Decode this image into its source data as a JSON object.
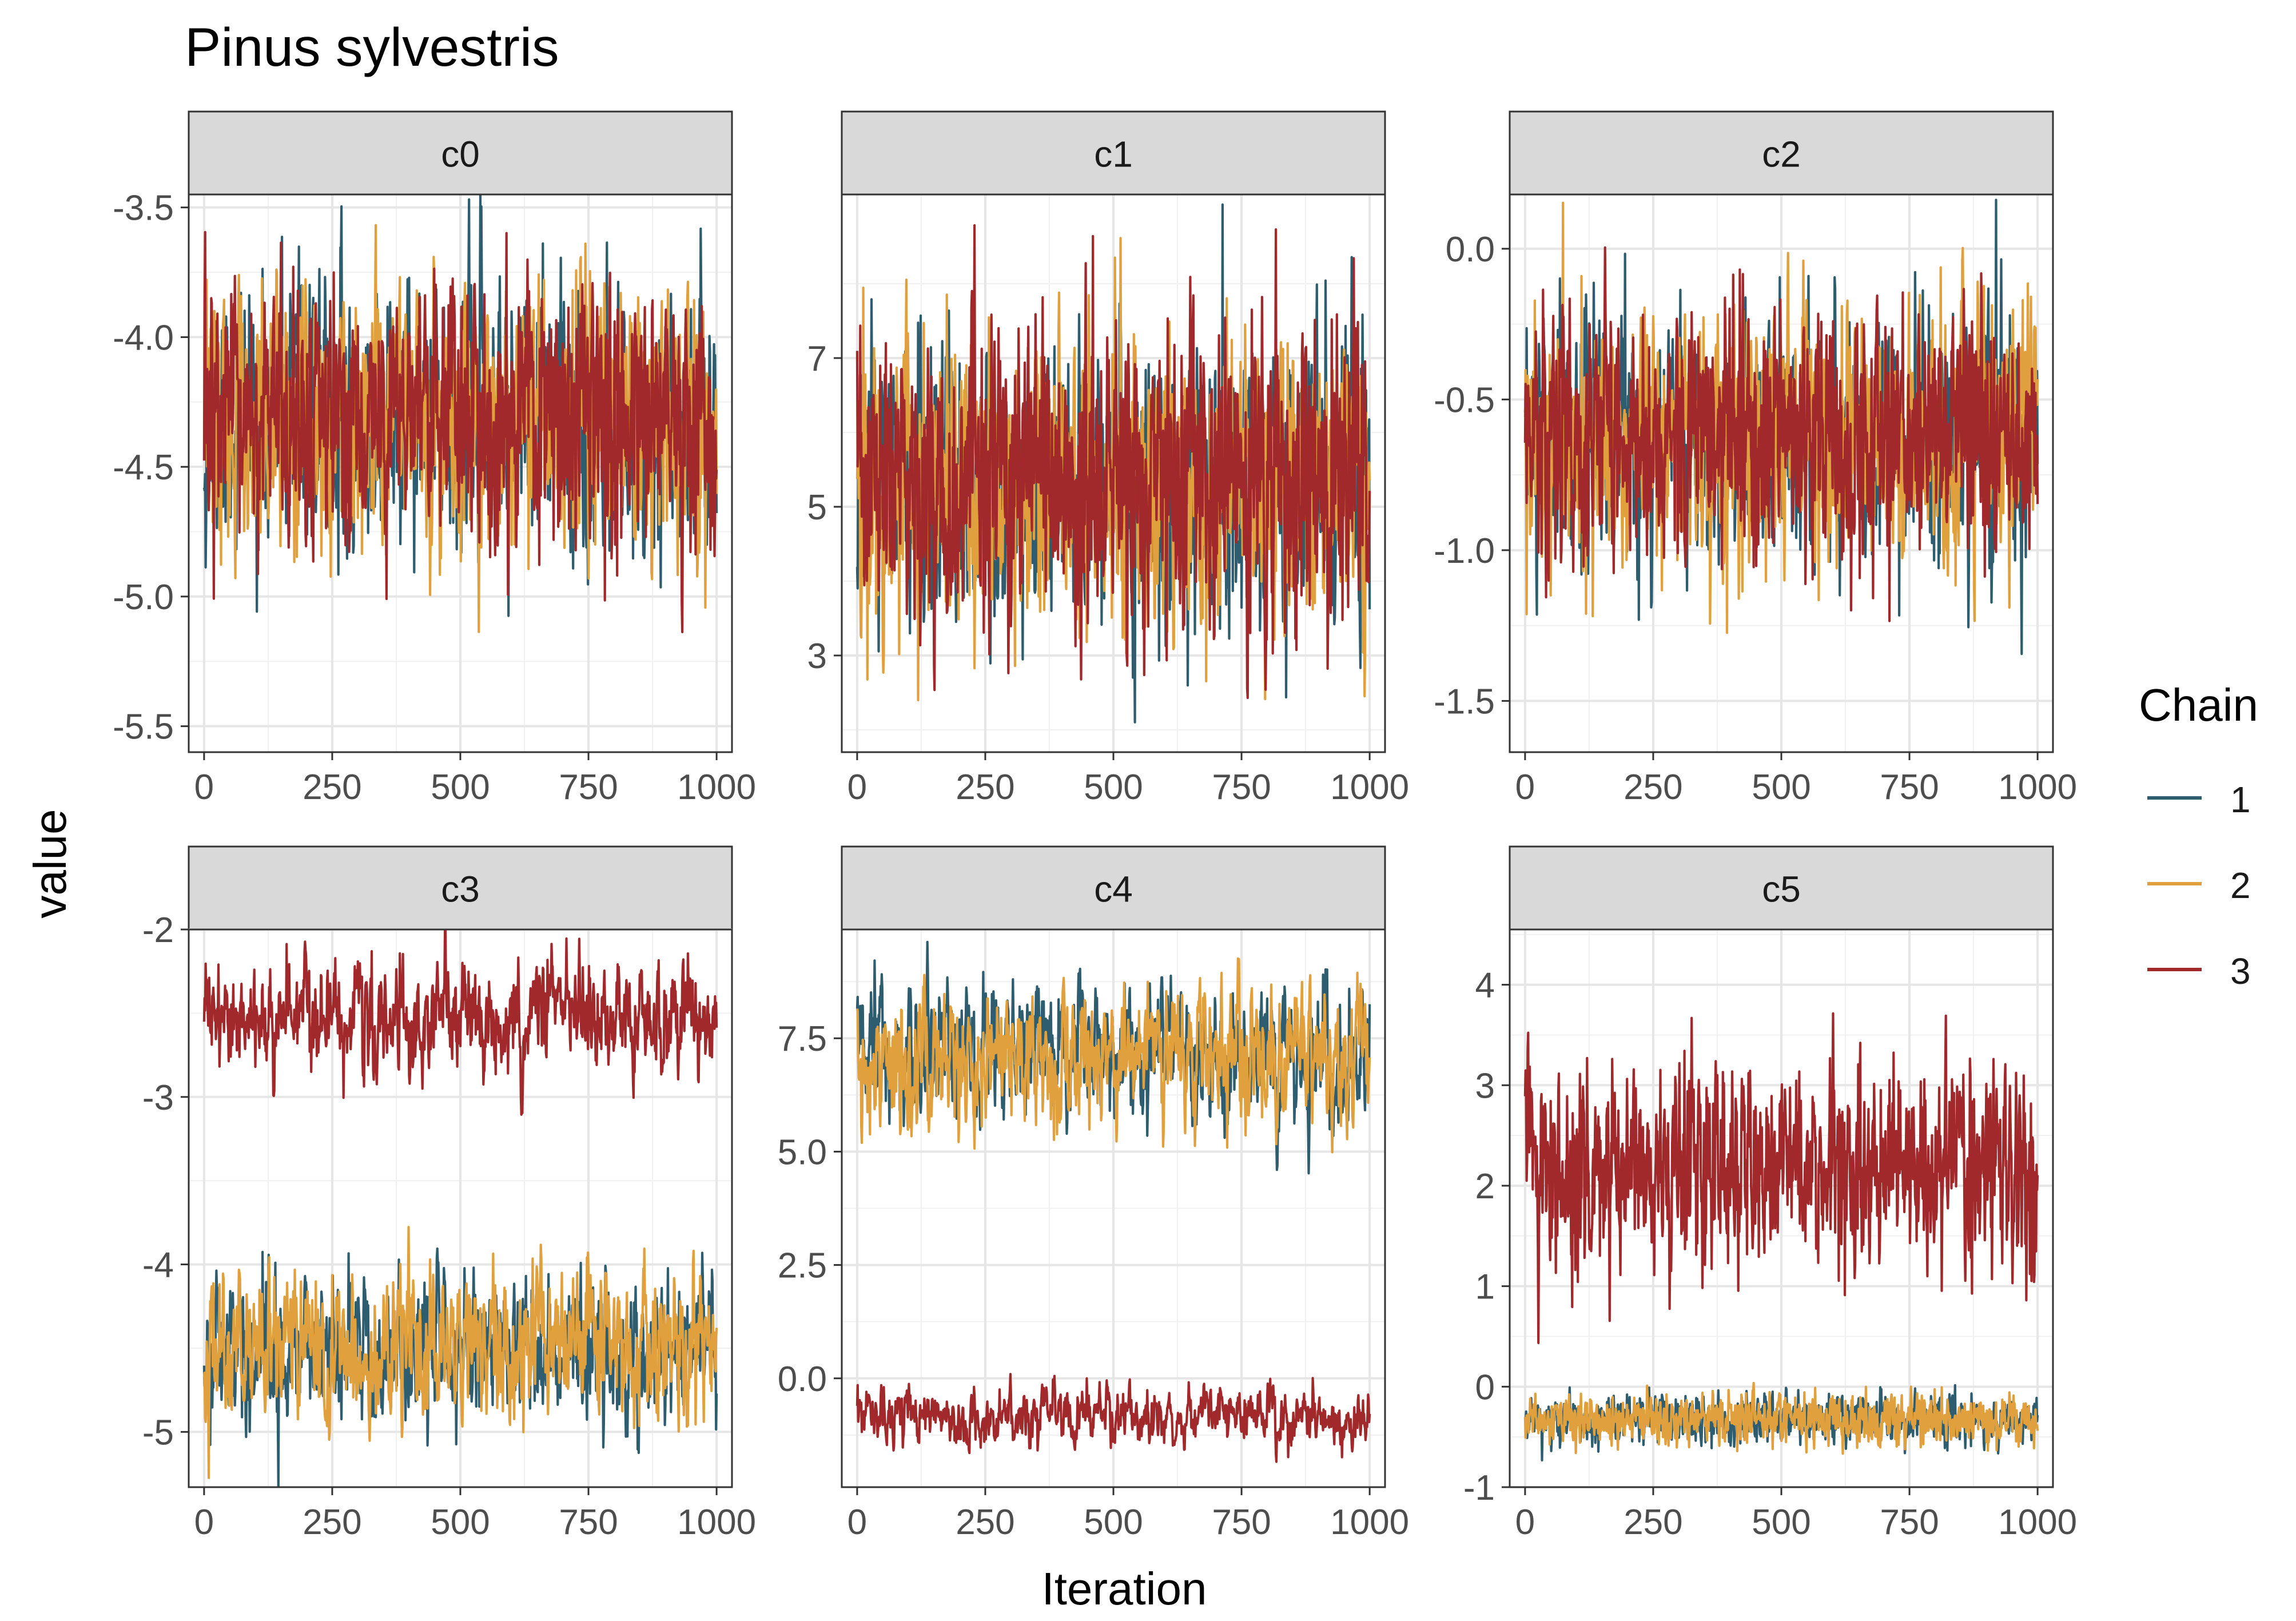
{
  "title": "Pinus sylvestris",
  "ylabel": "value",
  "xlabel": "Iteration",
  "legend": {
    "title": "Chain",
    "placement": "right",
    "entries": [
      {
        "label": "1",
        "color": "#2D5D6E"
      },
      {
        "label": "2",
        "color": "#E0A03E"
      },
      {
        "label": "3",
        "color": "#A1292B"
      }
    ]
  },
  "chart_data": [
    {
      "type": "line",
      "facet": "c0",
      "ylim": [
        -5.6,
        -3.45
      ],
      "xlim": [
        -30,
        1030
      ],
      "xticks": [
        0,
        250,
        500,
        750,
        1000
      ],
      "yticks": [
        -5.5,
        -5.0,
        -4.5,
        -4.0,
        -3.5
      ],
      "ytick_labels": [
        "-5.5",
        "-5.0",
        "-4.5",
        "-4.0",
        "-3.5"
      ],
      "grid": true,
      "series": [
        {
          "name": "1",
          "x_range": [
            0,
            1000
          ],
          "mean": -4.32,
          "sd": 0.24,
          "ar": 0.3,
          "seed": 11
        },
        {
          "name": "2",
          "x_range": [
            0,
            1000
          ],
          "mean": -4.32,
          "sd": 0.24,
          "ar": 0.3,
          "seed": 12
        },
        {
          "name": "3",
          "x_range": [
            0,
            1000
          ],
          "mean": -4.32,
          "sd": 0.24,
          "ar": 0.3,
          "seed": 13
        }
      ]
    },
    {
      "type": "line",
      "facet": "c1",
      "ylim": [
        1.7,
        9.2
      ],
      "xlim": [
        -30,
        1030
      ],
      "xticks": [
        0,
        250,
        500,
        750,
        1000
      ],
      "yticks": [
        3,
        5,
        7
      ],
      "ytick_labels": [
        "3",
        "5",
        "7"
      ],
      "grid": true,
      "series": [
        {
          "name": "1",
          "x_range": [
            0,
            1000
          ],
          "mean": 5.3,
          "sd": 0.95,
          "ar": 0.3,
          "seed": 21
        },
        {
          "name": "2",
          "x_range": [
            0,
            1000
          ],
          "mean": 5.3,
          "sd": 0.95,
          "ar": 0.3,
          "seed": 22
        },
        {
          "name": "3",
          "x_range": [
            0,
            1000
          ],
          "mean": 5.3,
          "sd": 0.95,
          "ar": 0.3,
          "seed": 23
        }
      ]
    },
    {
      "type": "line",
      "facet": "c2",
      "ylim": [
        -1.67,
        0.18
      ],
      "xlim": [
        -30,
        1030
      ],
      "xticks": [
        0,
        250,
        500,
        750,
        1000
      ],
      "yticks": [
        -1.5,
        -1.0,
        -0.5,
        0.0
      ],
      "ytick_labels": [
        "-1.5",
        "-1.0",
        "-0.5",
        "0.0"
      ],
      "grid": true,
      "series": [
        {
          "name": "1",
          "x_range": [
            0,
            1000
          ],
          "mean": -0.63,
          "sd": 0.2,
          "ar": 0.3,
          "seed": 31
        },
        {
          "name": "2",
          "x_range": [
            0,
            1000
          ],
          "mean": -0.63,
          "sd": 0.2,
          "ar": 0.3,
          "seed": 32
        },
        {
          "name": "3",
          "x_range": [
            0,
            1000
          ],
          "mean": -0.63,
          "sd": 0.2,
          "ar": 0.3,
          "seed": 33
        }
      ]
    },
    {
      "type": "line",
      "facet": "c3",
      "ylim": [
        -5.33,
        -2.0
      ],
      "xlim": [
        -30,
        1030
      ],
      "xticks": [
        0,
        250,
        500,
        750,
        1000
      ],
      "yticks": [
        -5,
        -4,
        -3,
        -2
      ],
      "ytick_labels": [
        "-5",
        "-4",
        "-3",
        "-2"
      ],
      "grid": true,
      "series": [
        {
          "name": "1",
          "x_range": [
            0,
            1000
          ],
          "mean": -4.5,
          "sd": 0.22,
          "ar": 0.55,
          "seed": 41
        },
        {
          "name": "2",
          "x_range": [
            0,
            1000
          ],
          "mean": -4.5,
          "sd": 0.22,
          "ar": 0.55,
          "seed": 42
        },
        {
          "name": "3",
          "x_range": [
            0,
            1000
          ],
          "mean": -2.55,
          "sd": 0.16,
          "ar": 0.55,
          "seed": 43
        }
      ]
    },
    {
      "type": "line",
      "facet": "c4",
      "ylim": [
        -2.4,
        9.9
      ],
      "xlim": [
        -30,
        1030
      ],
      "xticks": [
        0,
        250,
        500,
        750,
        1000
      ],
      "yticks": [
        0.0,
        2.5,
        5.0,
        7.5
      ],
      "ytick_labels": [
        "0.0",
        "2.5",
        "5.0",
        "7.5"
      ],
      "grid": true,
      "series": [
        {
          "name": "1",
          "x_range": [
            0,
            1000
          ],
          "mean": 7.1,
          "sd": 0.75,
          "ar": 0.6,
          "seed": 51
        },
        {
          "name": "2",
          "x_range": [
            0,
            1000
          ],
          "mean": 7.1,
          "sd": 0.75,
          "ar": 0.6,
          "seed": 52
        },
        {
          "name": "3",
          "x_range": [
            0,
            1000
          ],
          "mean": -0.85,
          "sd": 0.3,
          "ar": 0.6,
          "seed": 53
        }
      ]
    },
    {
      "type": "line",
      "facet": "c5",
      "ylim": [
        -1.0,
        4.55
      ],
      "xlim": [
        -30,
        1030
      ],
      "xticks": [
        0,
        250,
        500,
        750,
        1000
      ],
      "yticks": [
        -1,
        0,
        1,
        2,
        3,
        4
      ],
      "ytick_labels": [
        "-1",
        "0",
        "1",
        "2",
        "3",
        "4"
      ],
      "grid": true,
      "series": [
        {
          "name": "1",
          "x_range": [
            0,
            1000
          ],
          "mean": -0.33,
          "sd": 0.12,
          "ar": 0.3,
          "seed": 61
        },
        {
          "name": "2",
          "x_range": [
            0,
            1000
          ],
          "mean": -0.33,
          "sd": 0.12,
          "ar": 0.3,
          "seed": 62
        },
        {
          "name": "3",
          "x_range": [
            0,
            1000
          ],
          "mean": 2.2,
          "sd": 0.5,
          "ar": 0.35,
          "seed": 63
        }
      ]
    }
  ]
}
